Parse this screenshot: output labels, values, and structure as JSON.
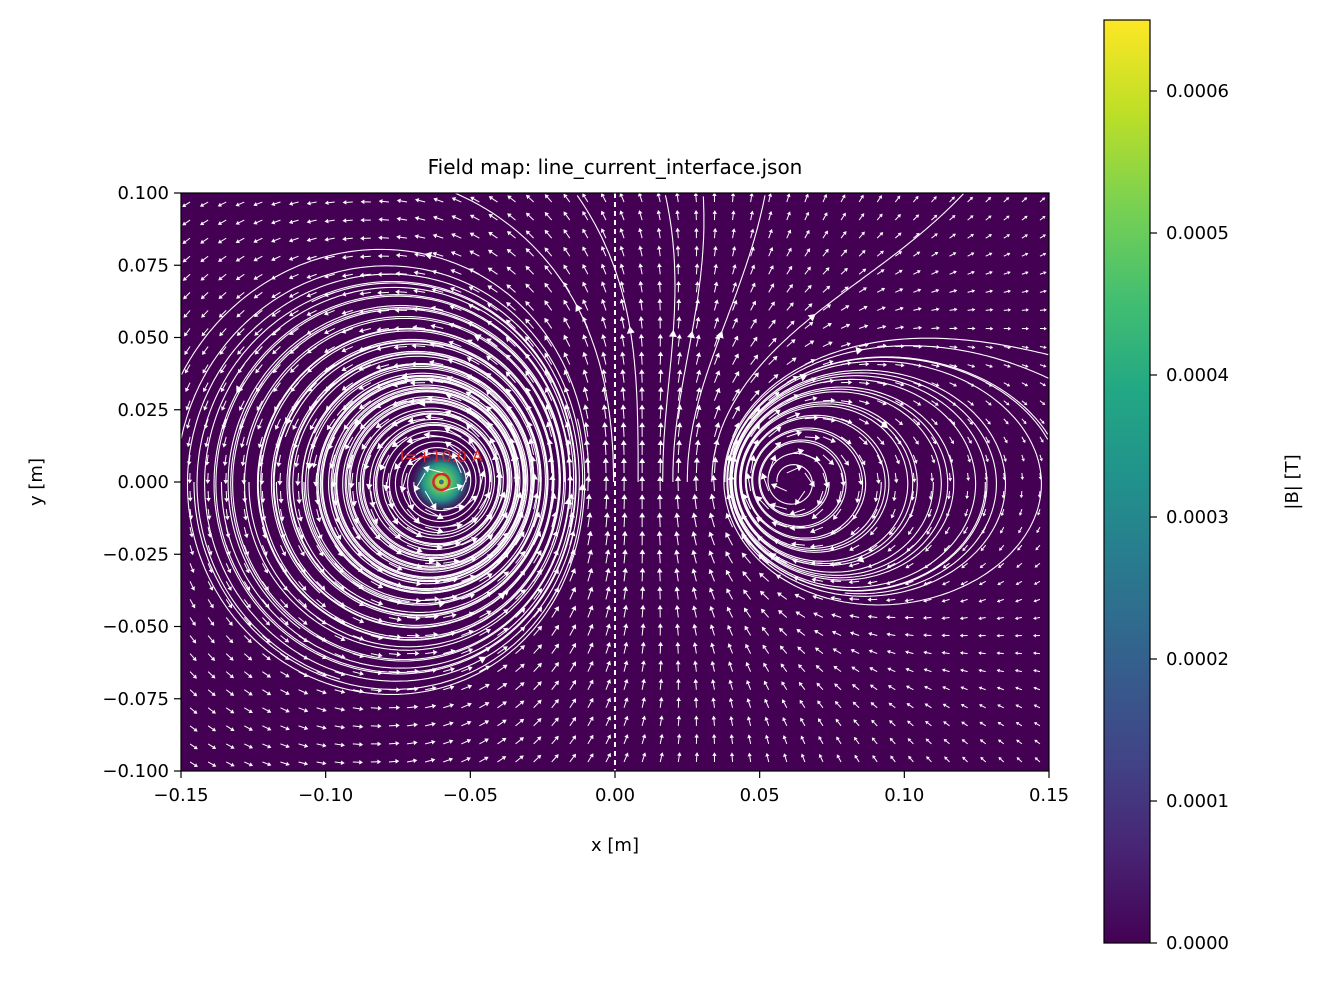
{
  "chart_data": {
    "type": "heatmap",
    "title": "Field map: line_current_interface.json",
    "xlabel": "x [m]",
    "ylabel": "y [m]",
    "xlim": [
      -0.15,
      0.15
    ],
    "ylim": [
      -0.1,
      0.1
    ],
    "x_ticks": [
      -0.15,
      -0.1,
      -0.05,
      0.0,
      0.05,
      0.1,
      0.15
    ],
    "x_tick_labels": [
      "−0.15",
      "−0.10",
      "−0.05",
      "0.00",
      "0.05",
      "0.10",
      "0.15"
    ],
    "y_ticks": [
      0.1,
      0.075,
      0.05,
      0.025,
      0.0,
      -0.025,
      -0.05,
      -0.075,
      -0.1
    ],
    "y_tick_labels": [
      "0.100",
      "0.075",
      "0.050",
      "0.025",
      "0.000",
      "−0.025",
      "−0.050",
      "−0.075",
      "−0.100"
    ],
    "colormap": "viridis",
    "colorbar": {
      "label": "|B| [T]",
      "range": [
        0,
        0.00065
      ],
      "ticks": [
        0.0,
        0.0001,
        0.0002,
        0.0003,
        0.0004,
        0.0005,
        0.0006
      ],
      "tick_labels": [
        "0.0000",
        "0.0001",
        "0.0002",
        "0.0003",
        "0.0004",
        "0.0005",
        "0.0006"
      ]
    },
    "source": {
      "x": -0.06,
      "y": 0.0,
      "label": "I=+10.0 A",
      "marker_color": "#d62728"
    },
    "interface_x": 0.0,
    "field_background": "#440154",
    "streamline_color": "#ffffff"
  }
}
